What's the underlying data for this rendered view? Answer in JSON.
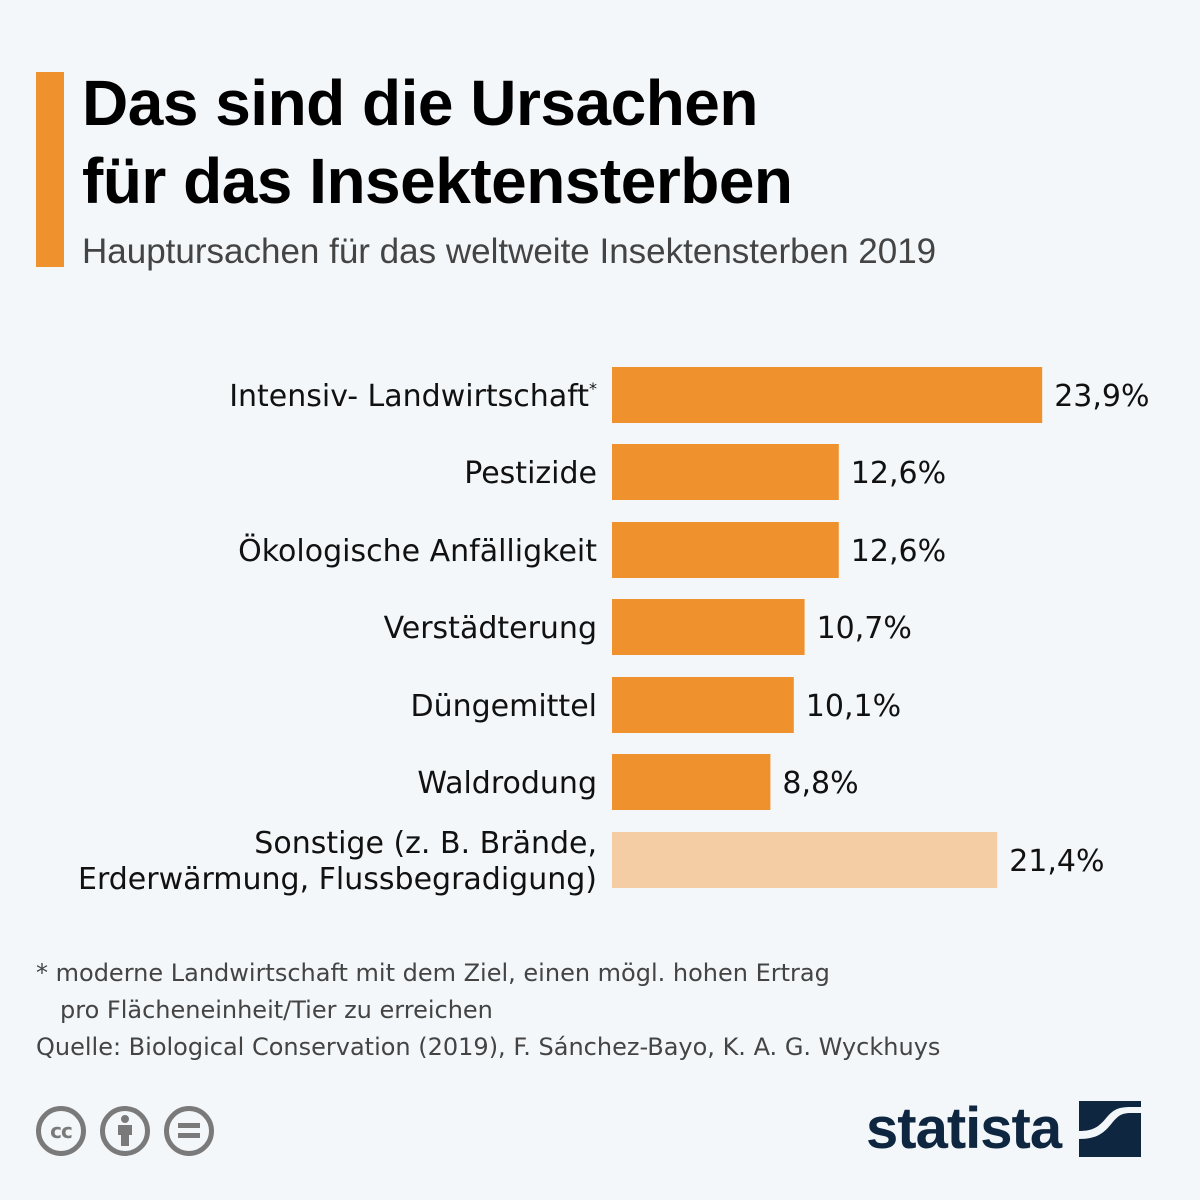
{
  "header": {
    "title_lines": [
      "Das sind die Ursachen",
      "für das Insektensterben"
    ],
    "subtitle": "Hauptursachen für das weltweite Insektensterben 2019"
  },
  "colors": {
    "accent": "#ef922e",
    "bar": "#ef922e",
    "bar_other": "#f4cda5",
    "background": "#f3f7fa",
    "logo": "#0f2640",
    "icon_gray": "#7a7a7a"
  },
  "chart_data": {
    "type": "bar",
    "orientation": "horizontal",
    "title": "Das sind die Ursachen für das Insektensterben",
    "subtitle": "Hauptursachen für das weltweite Insektensterben 2019",
    "xlabel": "",
    "ylabel": "",
    "unit": "%",
    "xlim": [
      0,
      25
    ],
    "grid": false,
    "legend": "none",
    "categories": [
      {
        "lines": [
          "Intensiv- Landwirtschaft"
        ],
        "sup": "*"
      },
      {
        "lines": [
          "Pestizide"
        ],
        "sup": ""
      },
      {
        "lines": [
          "Ökologische Anfälligkeit"
        ],
        "sup": ""
      },
      {
        "lines": [
          "Verstädterung"
        ],
        "sup": ""
      },
      {
        "lines": [
          "Düngemittel"
        ],
        "sup": ""
      },
      {
        "lines": [
          "Waldrodung"
        ],
        "sup": ""
      },
      {
        "lines": [
          "Sonstige (z. B. Brände,",
          "Erderwärmung, Flussbegradigung)"
        ],
        "sup": ""
      }
    ],
    "values": [
      23.9,
      12.6,
      12.6,
      10.7,
      10.1,
      8.8,
      21.4
    ],
    "value_labels": [
      "23,9%",
      "12,6%",
      "12,6%",
      "10,7%",
      "10,1%",
      "8,8%",
      "21,4%"
    ],
    "highlight": [
      true,
      true,
      true,
      true,
      true,
      true,
      false
    ]
  },
  "footer": {
    "footnote_line1": "* moderne Landwirtschaft mit dem Ziel, einen mögl. hohen Ertrag",
    "footnote_line2": "pro Flächeneinheit/Tier zu erreichen",
    "source": "Quelle: Biological Conservation (2019), F. Sánchez-Bayo, K. A. G. Wyckhuys",
    "license_icons": [
      "cc-icon",
      "attribution-icon",
      "no-derivatives-icon"
    ],
    "cc_text": "cc",
    "logo_text": "statista"
  }
}
